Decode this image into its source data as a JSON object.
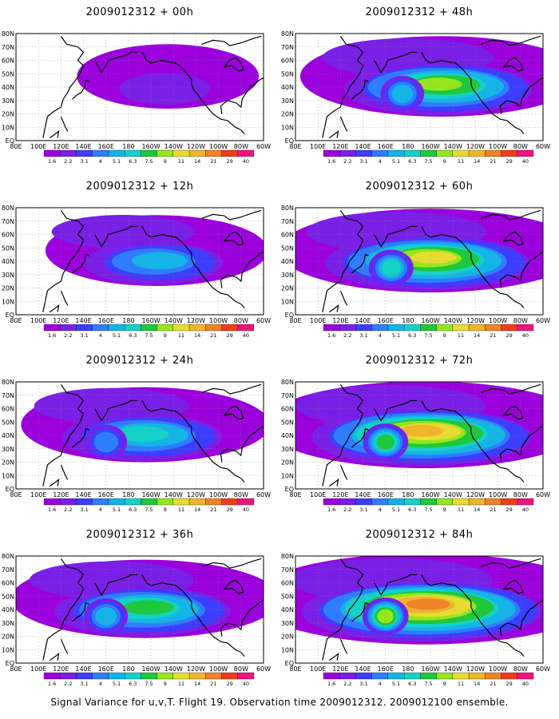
{
  "panels": [
    {
      "title": "2009012312 + 00h",
      "intensity": 0.12,
      "center_lon": 215
    },
    {
      "title": "2009012312 + 12h",
      "intensity": 0.32,
      "center_lon": 205
    },
    {
      "title": "2009012312 + 24h",
      "intensity": 0.45,
      "center_lon": 195
    },
    {
      "title": "2009012312 + 36h",
      "intensity": 0.55,
      "center_lon": 195
    },
    {
      "title": "2009012312 + 48h",
      "intensity": 0.62,
      "center_lon": 210
    },
    {
      "title": "2009012312 + 60h",
      "intensity": 0.72,
      "center_lon": 200
    },
    {
      "title": "2009012312 + 72h",
      "intensity": 0.82,
      "center_lon": 195
    },
    {
      "title": "2009012312 + 84h",
      "intensity": 0.95,
      "center_lon": 195
    }
  ],
  "map": {
    "lat_labels": [
      "80N",
      "70N",
      "60N",
      "50N",
      "40N",
      "30N",
      "20N",
      "10N",
      "EQ"
    ],
    "lon_labels": [
      "80E",
      "100E",
      "120E",
      "140E",
      "160E",
      "180",
      "160W",
      "140W",
      "120W",
      "100W",
      "80W",
      "60W"
    ],
    "lat_range": [
      0,
      80
    ],
    "lon_range": [
      80,
      300
    ],
    "gridlines": true,
    "land_outline_color": "#000000"
  },
  "legend": {
    "levels": [
      "1.6",
      "2.2",
      "3.1",
      "4",
      "5.1",
      "6.3",
      "7.5",
      "9",
      "11",
      "14",
      "21",
      "29",
      "40"
    ],
    "colors": [
      "#9b00dd",
      "#7a1fe6",
      "#3d3dff",
      "#2f7dff",
      "#14b4e6",
      "#14d2c8",
      "#1ec83c",
      "#96e61e",
      "#e6dc32",
      "#f0b42d",
      "#f08228",
      "#f03c1e",
      "#f0147d"
    ]
  },
  "caption": "Signal Variance for u,v,T. Flight 19. Observation time 2009012312. 2009012100 ensemble."
}
